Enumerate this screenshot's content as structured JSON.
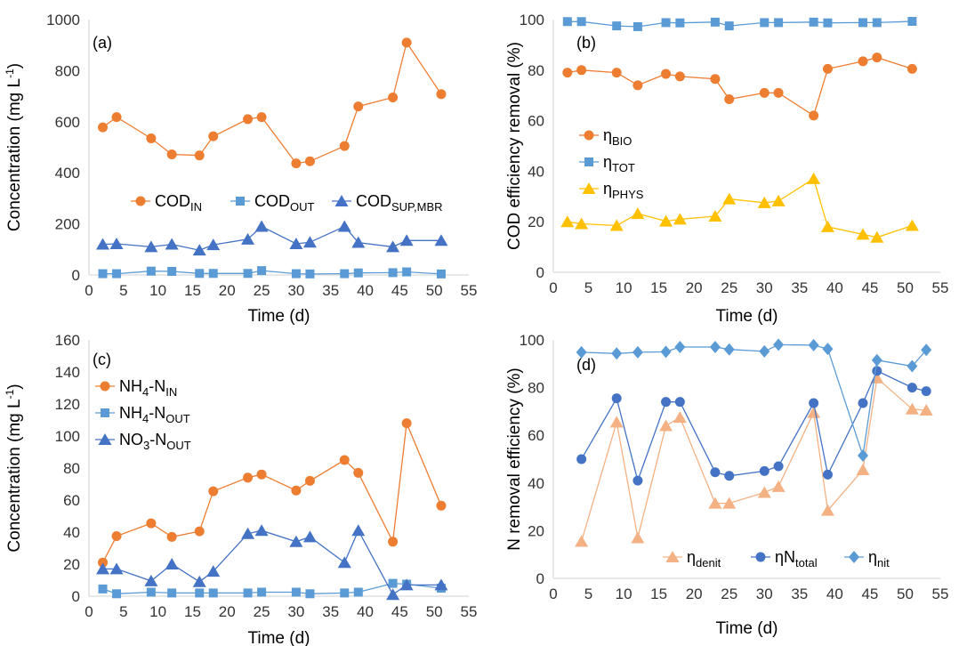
{
  "colors": {
    "orange": "#ED7D31",
    "blue_light": "#5B9BD5",
    "blue_dark": "#4472C4",
    "gold": "#FFC000",
    "peach": "#F4B183",
    "axis": "#D9D9D9"
  },
  "chart_data": [
    {
      "type": "line",
      "panel_label": "(a)",
      "xlabel": "Time (d)",
      "ylabel": "Concentration (mg L-1)",
      "ylabel_parts": {
        "base": "Concentration (mg L",
        "sup": "-1",
        "close": ")"
      },
      "xlim": [
        0,
        55
      ],
      "ylim": [
        0,
        1000
      ],
      "xticks": [
        "0",
        "5",
        "10",
        "15",
        "20",
        "25",
        "30",
        "35",
        "40",
        "45",
        "50",
        "55"
      ],
      "yticks": [
        "0",
        "200",
        "400",
        "600",
        "800",
        "1000"
      ],
      "legend_position": "middle-right",
      "series": [
        {
          "name": "COD_IN",
          "label_base": "COD",
          "label_sub": "IN",
          "marker": "circle",
          "color": "#ED7D31",
          "x": [
            2,
            4,
            9,
            12,
            16,
            18,
            23,
            25,
            30,
            32,
            37,
            39,
            44,
            46,
            51
          ],
          "y": [
            578,
            618,
            535,
            472,
            468,
            543,
            610,
            618,
            437,
            445,
            505,
            660,
            695,
            910,
            708
          ]
        },
        {
          "name": "COD_OUT",
          "label_base": "COD",
          "label_sub": "OUT",
          "marker": "square",
          "color": "#5B9BD5",
          "x": [
            2,
            4,
            9,
            12,
            16,
            18,
            23,
            25,
            30,
            32,
            37,
            39,
            44,
            46,
            51
          ],
          "y": [
            5,
            5,
            15,
            14,
            6,
            6,
            6,
            17,
            5,
            4,
            5,
            8,
            9,
            12,
            4
          ]
        },
        {
          "name": "COD_SUP,MBR",
          "label_base": "COD",
          "label_sub": "SUP,MBR",
          "marker": "triangle",
          "color": "#4472C4",
          "x": [
            2,
            4,
            9,
            12,
            16,
            18,
            23,
            25,
            30,
            32,
            37,
            39,
            44,
            46,
            51
          ],
          "y": [
            120,
            122,
            110,
            120,
            97,
            118,
            140,
            190,
            122,
            128,
            190,
            127,
            110,
            135,
            135
          ]
        }
      ]
    },
    {
      "type": "line",
      "panel_label": "(b)",
      "xlabel": "Time (d)",
      "ylabel": "COD efficiency removal (%)",
      "xlim": [
        0,
        55
      ],
      "ylim": [
        0,
        100
      ],
      "xticks": [
        "0",
        "5",
        "10",
        "15",
        "20",
        "25",
        "30",
        "35",
        "40",
        "45",
        "50",
        "55"
      ],
      "yticks": [
        "0",
        "20",
        "40",
        "60",
        "80",
        "100"
      ],
      "legend_position": "left",
      "series": [
        {
          "name": "ηBIO",
          "label_base": "η",
          "label_sub": "BIO",
          "marker": "circle",
          "color": "#ED7D31",
          "x": [
            2,
            4,
            9,
            12,
            16,
            18,
            23,
            25,
            30,
            32,
            37,
            39,
            44,
            46,
            51
          ],
          "y": [
            79,
            80,
            79,
            74,
            78.5,
            77.5,
            76.5,
            68.5,
            71,
            71,
            62,
            80.5,
            83.5,
            85,
            80.5
          ]
        },
        {
          "name": "ηTOT",
          "label_base": "η",
          "label_sub": "TOT",
          "marker": "square",
          "color": "#5B9BD5",
          "x": [
            2,
            4,
            9,
            12,
            16,
            18,
            23,
            25,
            30,
            32,
            37,
            39,
            44,
            46,
            51
          ],
          "y": [
            99.2,
            99.2,
            97.5,
            97.2,
            98.8,
            98.7,
            99,
            97.5,
            98.8,
            98.8,
            99,
            98.7,
            98.8,
            98.8,
            99.3
          ]
        },
        {
          "name": "ηPHYS",
          "label_base": "η",
          "label_sub": "PHYS",
          "marker": "triangle",
          "color": "#FFC000",
          "x": [
            2,
            4,
            9,
            12,
            16,
            18,
            23,
            25,
            30,
            32,
            37,
            39,
            44,
            46,
            51
          ],
          "y": [
            20,
            19.2,
            18.5,
            23.2,
            20.2,
            21,
            22.2,
            29,
            27.5,
            28.2,
            37,
            18,
            15,
            13.8,
            18.5
          ]
        }
      ]
    },
    {
      "type": "line",
      "panel_label": "(c)",
      "xlabel": "Time (d)",
      "ylabel": "Concentration (mg L-1)",
      "ylabel_parts": {
        "base": "Concentration (mg L",
        "sup": "-1",
        "close": ")"
      },
      "xlim": [
        0,
        55
      ],
      "ylim": [
        0,
        160
      ],
      "xticks": [
        "0",
        "5",
        "10",
        "15",
        "20",
        "25",
        "30",
        "35",
        "40",
        "45",
        "50",
        "55"
      ],
      "yticks": [
        "0",
        "20",
        "40",
        "60",
        "80",
        "100",
        "120",
        "140",
        "160"
      ],
      "legend_position": "top-left",
      "series": [
        {
          "name": "NH4-NIN",
          "label_base": "NH",
          "label_sub": "4",
          "label_mid": "-N",
          "label_sub2": "IN",
          "marker": "circle",
          "color": "#ED7D31",
          "x": [
            2,
            4,
            9,
            12,
            16,
            18,
            23,
            25,
            30,
            32,
            37,
            39,
            44,
            46,
            51
          ],
          "y": [
            21,
            37.5,
            45.5,
            37,
            40.5,
            65.5,
            74,
            76,
            66,
            72,
            85,
            77,
            34,
            108,
            56.5
          ]
        },
        {
          "name": "NH4-NOUT",
          "label_base": "NH",
          "label_sub": "4",
          "label_mid": "-N",
          "label_sub2": "OUT",
          "marker": "square",
          "color": "#5B9BD5",
          "x": [
            2,
            4,
            9,
            12,
            16,
            18,
            23,
            25,
            30,
            32,
            37,
            39,
            44,
            46,
            51
          ],
          "y": [
            4.5,
            1.5,
            2.5,
            2,
            2,
            2,
            2,
            2.5,
            2.5,
            1.5,
            2,
            2.5,
            8,
            7.5,
            5
          ]
        },
        {
          "name": "NO3-NOUT",
          "label_base": "NO",
          "label_sub": "3",
          "label_mid": "-N",
          "label_sub2": "OUT",
          "marker": "triangle",
          "color": "#4472C4",
          "x": [
            2,
            4,
            9,
            12,
            16,
            18,
            23,
            25,
            30,
            32,
            37,
            39,
            44,
            46,
            51
          ],
          "y": [
            17,
            17,
            9.5,
            20,
            9,
            15.5,
            39,
            41,
            34,
            37,
            21,
            41,
            1,
            7,
            7
          ]
        }
      ]
    },
    {
      "type": "line",
      "panel_label": "(d)",
      "xlabel": "Time (d)",
      "ylabel": "N removal efficiency (%)",
      "xlim": [
        0,
        55
      ],
      "ylim": [
        0,
        100
      ],
      "xticks": [
        "0",
        "5",
        "10",
        "15",
        "20",
        "25",
        "30",
        "35",
        "40",
        "45",
        "50",
        "55"
      ],
      "yticks": [
        "0",
        "20",
        "40",
        "60",
        "80",
        "100"
      ],
      "legend_position": "bottom",
      "series": [
        {
          "name": "ηdenit",
          "label_base": "η",
          "label_sub": "denit",
          "marker": "triangle",
          "color": "#F4B183",
          "x": [
            4,
            9,
            12,
            16,
            18,
            23,
            25,
            30,
            32,
            37,
            39,
            44,
            46,
            51,
            53
          ],
          "y": [
            15.5,
            65.5,
            17,
            64,
            67.5,
            31.5,
            31.5,
            36,
            38.5,
            69.5,
            28.5,
            45.5,
            84,
            71,
            70.5
          ]
        },
        {
          "name": "ηNtotal",
          "label_base": "ηN",
          "label_sub": "total",
          "marker": "circle",
          "color": "#4472C4",
          "x": [
            4,
            9,
            12,
            16,
            18,
            23,
            25,
            30,
            32,
            37,
            39,
            44,
            46,
            51,
            53
          ],
          "y": [
            50,
            75.5,
            41,
            74,
            74,
            44.5,
            43,
            45,
            47,
            73.5,
            43.5,
            73.5,
            87,
            80,
            78.5
          ]
        },
        {
          "name": "ηnit",
          "label_base": "η",
          "label_sub": "nit",
          "marker": "diamond",
          "color": "#5B9BD5",
          "x": [
            4,
            9,
            12,
            16,
            18,
            23,
            25,
            30,
            32,
            37,
            39,
            44,
            46,
            51,
            53
          ],
          "y": [
            94.8,
            94.3,
            94.8,
            95,
            97,
            97,
            96,
            95.2,
            98,
            97.8,
            96.2,
            51.5,
            91.5,
            89,
            95.8
          ]
        }
      ]
    }
  ]
}
